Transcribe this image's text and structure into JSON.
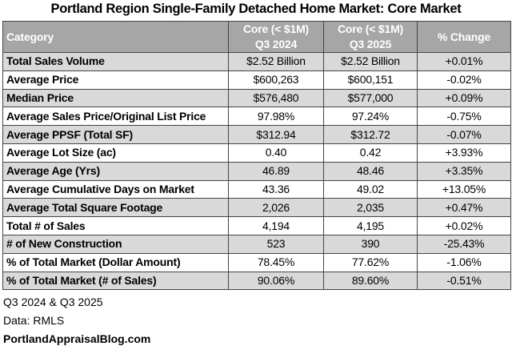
{
  "title": "Portland Region Single-Family Detached Home Market: Core Market",
  "header": {
    "category": "Category",
    "col1_line1": "Core (< $1M)",
    "col1_line2": "Q3 2024",
    "col2_line1": "Core (< $1M)",
    "col2_line2": "Q3 2025",
    "change": "% Change"
  },
  "rows": [
    [
      "Total Sales Volume",
      "$2.52 Billion",
      "$2.52 Billion",
      "+0.01%"
    ],
    [
      "Average Price",
      "$600,263",
      "$600,151",
      "-0.02%"
    ],
    [
      "Median Price",
      "$576,480",
      "$577,000",
      "+0.09%"
    ],
    [
      "Average Sales Price/Original List Price",
      "97.98%",
      "97.24%",
      "-0.75%"
    ],
    [
      "Average PPSF (Total SF)",
      "$312.94",
      "$312.72",
      "-0.07%"
    ],
    [
      "Average Lot Size (ac)",
      "0.40",
      "0.42",
      "+3.93%"
    ],
    [
      "Average Age (Yrs)",
      "46.89",
      "48.46",
      "+3.35%"
    ],
    [
      "Average Cumulative Days on Market",
      "43.36",
      "49.02",
      "+13.05%"
    ],
    [
      "Average Total Square Footage",
      "2,026",
      "2,035",
      "+0.47%"
    ],
    [
      "Total # of Sales",
      "4,194",
      "4,195",
      "+0.02%"
    ],
    [
      "# of New Construction",
      "523",
      "390",
      "-25.43%"
    ],
    [
      "% of Total Market (Dollar Amount)",
      "78.45%",
      "77.62%",
      "-1.06%"
    ],
    [
      "% of Total Market (# of Sales)",
      "90.06%",
      "89.60%",
      "-0.51%"
    ]
  ],
  "footer": {
    "period": "Q3 2024 & Q3 2025",
    "source": "Data: RMLS",
    "site": "PortlandAppraisalBlog.com"
  },
  "colors": {
    "header_bg": "#a6a6a6",
    "stripe_bg": "#d9d9d9"
  }
}
